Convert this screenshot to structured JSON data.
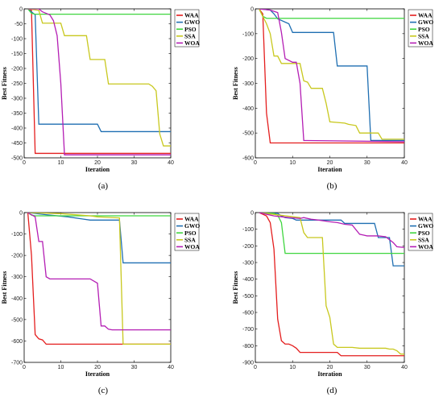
{
  "colors": {
    "WAA": "#e41e1e",
    "GWO": "#1f6fb2",
    "PSO": "#3fd63f",
    "SSA": "#c8c81e",
    "WOA": "#b41eb4"
  },
  "chart_data": [
    {
      "type": "line",
      "caption": "(a)",
      "xlabel": "Iteration",
      "ylabel": "Best Fitness",
      "xlim": [
        0,
        40
      ],
      "ylim": [
        -500,
        0
      ],
      "xticks": [
        0,
        10,
        20,
        30,
        40
      ],
      "yticks": [
        0,
        -50,
        -100,
        -150,
        -200,
        -250,
        -300,
        -350,
        -400,
        -450,
        -500
      ],
      "legend_position": "top-right",
      "series": [
        {
          "name": "WAA",
          "x": [
            1,
            2,
            3,
            4,
            40
          ],
          "y": [
            0,
            -5,
            -485,
            -485,
            -485
          ]
        },
        {
          "name": "GWO",
          "x": [
            1,
            3,
            4,
            20,
            21,
            40
          ],
          "y": [
            0,
            -20,
            -387,
            -387,
            -412,
            -412
          ]
        },
        {
          "name": "PSO",
          "x": [
            1,
            2,
            3,
            40
          ],
          "y": [
            0,
            -15,
            -18,
            -18
          ]
        },
        {
          "name": "SSA",
          "x": [
            1,
            4,
            5,
            10,
            11,
            17,
            18,
            22,
            23,
            34,
            35,
            36,
            37,
            38,
            40
          ],
          "y": [
            0,
            -5,
            -48,
            -48,
            -90,
            -90,
            -170,
            -170,
            -252,
            -252,
            -260,
            -275,
            -420,
            -460,
            -460
          ]
        },
        {
          "name": "WOA",
          "x": [
            1,
            4,
            5,
            6,
            7,
            8,
            9,
            10,
            11,
            40
          ],
          "y": [
            0,
            0,
            -10,
            -15,
            -20,
            -40,
            -90,
            -250,
            -490,
            -490
          ]
        }
      ]
    },
    {
      "type": "line",
      "caption": "(b)",
      "xlabel": "Iteration",
      "ylabel": "Best Fitness",
      "xlim": [
        0,
        40
      ],
      "ylim": [
        -600,
        0
      ],
      "xticks": [
        0,
        10,
        20,
        30,
        40
      ],
      "yticks": [
        0,
        -100,
        -200,
        -300,
        -400,
        -500,
        -600
      ],
      "legend_position": "top-right",
      "series": [
        {
          "name": "WAA",
          "x": [
            1,
            2,
            3,
            4,
            40
          ],
          "y": [
            0,
            -20,
            -420,
            -540,
            -540
          ]
        },
        {
          "name": "GWO",
          "x": [
            1,
            4,
            5,
            6,
            9,
            10,
            21,
            22,
            30,
            31,
            40
          ],
          "y": [
            0,
            -5,
            -20,
            -40,
            -60,
            -95,
            -95,
            -230,
            -230,
            -530,
            -530
          ]
        },
        {
          "name": "PSO",
          "x": [
            1,
            2,
            3,
            40
          ],
          "y": [
            0,
            -30,
            -38,
            -38
          ]
        },
        {
          "name": "SSA",
          "x": [
            1,
            3,
            4,
            5,
            6,
            7,
            12,
            13,
            14,
            15,
            18,
            19,
            20,
            24,
            25,
            27,
            28,
            33,
            34,
            40
          ],
          "y": [
            0,
            -60,
            -100,
            -190,
            -190,
            -220,
            -220,
            -290,
            -295,
            -320,
            -320,
            -380,
            -455,
            -460,
            -465,
            -470,
            -500,
            -500,
            -525,
            -525
          ]
        },
        {
          "name": "WOA",
          "x": [
            1,
            4,
            6,
            7,
            8,
            10,
            11,
            12,
            13,
            40
          ],
          "y": [
            0,
            -5,
            -15,
            -95,
            -200,
            -215,
            -215,
            -300,
            -530,
            -535
          ]
        }
      ]
    },
    {
      "type": "line",
      "caption": "(c)",
      "xlabel": "Iteration",
      "ylabel": "Best Fitness",
      "xlim": [
        0,
        40
      ],
      "ylim": [
        -700,
        0
      ],
      "xticks": [
        0,
        10,
        20,
        30,
        40
      ],
      "yticks": [
        0,
        -100,
        -200,
        -300,
        -400,
        -500,
        -600,
        -700
      ],
      "legend_position": "top-right",
      "series": [
        {
          "name": "WAA",
          "x": [
            1,
            2,
            3,
            4,
            5,
            6,
            40
          ],
          "y": [
            0,
            -200,
            -570,
            -590,
            -595,
            -615,
            -615
          ]
        },
        {
          "name": "GWO",
          "x": [
            1,
            6,
            12,
            16,
            18,
            26,
            27,
            40
          ],
          "y": [
            0,
            -10,
            -20,
            -30,
            -35,
            -35,
            -235,
            -235
          ]
        },
        {
          "name": "PSO",
          "x": [
            1,
            2,
            3,
            40
          ],
          "y": [
            0,
            -12,
            -15,
            -15
          ]
        },
        {
          "name": "SSA",
          "x": [
            1,
            10,
            18,
            20,
            26,
            27,
            40
          ],
          "y": [
            0,
            -5,
            -15,
            -20,
            -25,
            -615,
            -615
          ]
        },
        {
          "name": "WOA",
          "x": [
            1,
            3,
            4,
            5,
            6,
            7,
            18,
            20,
            21,
            22,
            23,
            24,
            40
          ],
          "y": [
            0,
            -20,
            -135,
            -135,
            -300,
            -310,
            -310,
            -330,
            -530,
            -530,
            -545,
            -548,
            -548
          ]
        }
      ]
    },
    {
      "type": "line",
      "caption": "(d)",
      "xlabel": "Iteration",
      "ylabel": "Best Fitness",
      "xlim": [
        0,
        40
      ],
      "ylim": [
        -900,
        0
      ],
      "xticks": [
        0,
        10,
        20,
        30,
        40
      ],
      "yticks": [
        0,
        -100,
        -200,
        -300,
        -400,
        -500,
        -600,
        -700,
        -800,
        -900
      ],
      "legend_position": "top-right",
      "series": [
        {
          "name": "WAA",
          "x": [
            1,
            2,
            3,
            4,
            5,
            6,
            7,
            8,
            9,
            10,
            11,
            12,
            13,
            22,
            23,
            40
          ],
          "y": [
            0,
            -10,
            -20,
            -60,
            -220,
            -640,
            -770,
            -790,
            -790,
            -800,
            -815,
            -840,
            -840,
            -840,
            -860,
            -860
          ]
        },
        {
          "name": "GWO",
          "x": [
            1,
            6,
            7,
            8,
            10,
            11,
            23,
            24,
            32,
            33,
            36,
            37,
            40
          ],
          "y": [
            0,
            -5,
            -20,
            -30,
            -35,
            -45,
            -45,
            -65,
            -65,
            -150,
            -150,
            -320,
            -320
          ]
        },
        {
          "name": "PSO",
          "x": [
            1,
            5,
            6,
            7,
            8,
            40
          ],
          "y": [
            0,
            -5,
            -15,
            -60,
            -245,
            -245
          ]
        },
        {
          "name": "SSA",
          "x": [
            1,
            12,
            13,
            14,
            15,
            18,
            19,
            20,
            21,
            22,
            26,
            28,
            35,
            36,
            37,
            38,
            39,
            40
          ],
          "y": [
            0,
            -30,
            -120,
            -150,
            -150,
            -150,
            -560,
            -630,
            -790,
            -810,
            -810,
            -815,
            -815,
            -820,
            -820,
            -830,
            -850,
            -850
          ]
        },
        {
          "name": "WOA",
          "x": [
            1,
            3,
            5,
            7,
            9,
            12,
            13,
            15,
            17,
            20,
            22,
            24,
            26,
            28,
            29,
            30,
            33,
            35,
            37,
            38,
            40
          ],
          "y": [
            0,
            -10,
            -20,
            -25,
            -30,
            -35,
            -30,
            -40,
            -45,
            -55,
            -60,
            -70,
            -75,
            -130,
            -135,
            -140,
            -140,
            -145,
            -180,
            -205,
            -210
          ]
        }
      ]
    }
  ]
}
